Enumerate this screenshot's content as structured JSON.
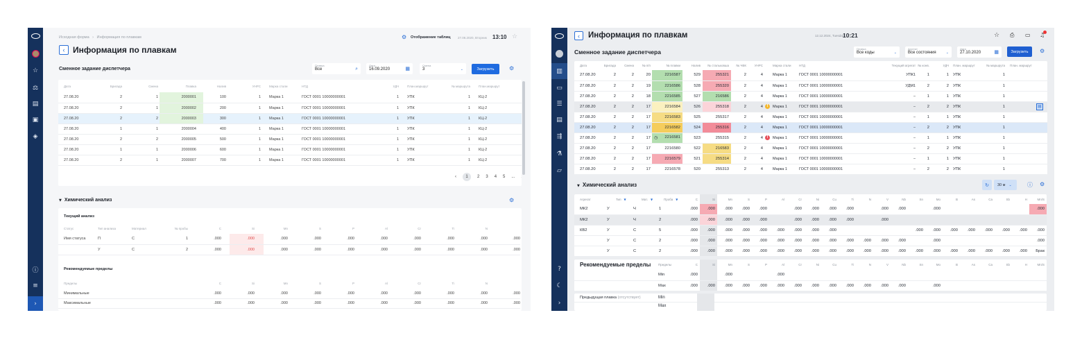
{
  "cell_colors": {
    "green": "#b3deaf",
    "lightgreen": "#e2f4dd",
    "yellow": "#f6dc84",
    "lightyellow": "#fbf1c0",
    "amber": "#f5cd5c",
    "pink": "#f6aab3",
    "lightpink": "#fbd4d9",
    "red": "#f28c99",
    "softred": "#fdeaea",
    "selected": "#dbe8f8",
    "lightselected": "#e6f2fc",
    "hover": "#e8eaed",
    "grey": "#e5e7ea"
  },
  "left": {
    "breadcrumb": [
      "Исходная форма",
      "›",
      "Информация по плавкам"
    ],
    "display_tables": "Отображение таблиц",
    "date": "27.08.2020, Вторник",
    "time": "13:10",
    "title": "Информация по плавкам",
    "section_title": "Сменное задание диспетчера",
    "filters": [
      {
        "label": "Плавка",
        "value": "Все"
      },
      {
        "label": "Дата",
        "value": "16.09.2020"
      },
      {
        "label": "Смена",
        "value": "3"
      }
    ],
    "load": "Загрузить",
    "table": {
      "headers": [
        "Дата",
        "Бригада",
        "Смена",
        "Плавка",
        "Налив",
        "УНРС",
        "Марка стали",
        "НТД",
        "УДЧ",
        "План.маршрут",
        "№ маршрута",
        "План.маршрут"
      ],
      "rows": [
        {
          "cells": [
            "27.08.20",
            "2",
            "1",
            "2000001",
            "100",
            "1",
            "Марка 1",
            "ГОСТ 0001 10000000001",
            "1",
            "УПК",
            "1",
            "КЦ-2"
          ],
          "hl": {
            "3": "lightgreen"
          }
        },
        {
          "cells": [
            "27.08.20",
            "2",
            "1",
            "2000002",
            "200",
            "1",
            "Марка 1",
            "ГОСТ 0001 10000000001",
            "1",
            "УПК",
            "1",
            "КЦ-2"
          ],
          "hl": {
            "3": "lightgreen"
          }
        },
        {
          "cells": [
            "27.08.20",
            "2",
            "2",
            "2000003",
            "300",
            "1",
            "Марка 1",
            "ГОСТ 0001 10000000001",
            "1",
            "УПК",
            "1",
            "КЦ-2"
          ],
          "hl": {
            "3": "lightgreen"
          },
          "state": "lightselected"
        },
        {
          "cells": [
            "27.08.20",
            "1",
            "1",
            "2000004",
            "400",
            "1",
            "Марка 1",
            "ГОСТ 0001 10000000001",
            "1",
            "УПК",
            "1",
            "КЦ-2"
          ]
        },
        {
          "cells": [
            "27.08.20",
            "2",
            "2",
            "2000005",
            "500",
            "1",
            "Марка 1",
            "ГОСТ 0001 10000000001",
            "1",
            "УПК",
            "1",
            "КЦ-2"
          ]
        },
        {
          "cells": [
            "27.08.20",
            "1",
            "1",
            "2000006",
            "600",
            "1",
            "Марка 1",
            "ГОСТ 0001 10000000001",
            "1",
            "УПК",
            "1",
            "КЦ-2"
          ]
        },
        {
          "cells": [
            "27.08.20",
            "2",
            "1",
            "2000007",
            "700",
            "1",
            "Марка 1",
            "ГОСТ 0001 10000000001",
            "1",
            "УПК",
            "1",
            "КЦ-2"
          ]
        }
      ]
    },
    "pagination": {
      "prev": "‹",
      "pages": [
        "1",
        "2",
        "3",
        "4",
        "5",
        "...",
        "10"
      ],
      "next": "›",
      "current": "1"
    },
    "chem": {
      "title": "Химический анализ",
      "current_title": "Текущий анализ",
      "current": {
        "headers": [
          "Статус",
          "Тип анализа",
          "Материал",
          "№ пробы",
          "C",
          "Si",
          "Mn",
          "S",
          "P",
          "Al",
          "Cr",
          "Ti",
          "N",
          ""
        ],
        "rows": [
          {
            "cells": [
              "Имя статуса",
              "П",
              "С",
              "1",
              ".000",
              ".000",
              ".000",
              ".000",
              ".000",
              ".000",
              ".000",
              ".000",
              ".000",
              ".000"
            ],
            "hl": {
              "5": "softred"
            },
            "red": [
              5
            ]
          },
          {
            "cells": [
              "",
              "У",
              "С",
              "2",
              ".000",
              ".000",
              ".000",
              ".000",
              ".000",
              ".000",
              ".000",
              ".000",
              ".000",
              ".000"
            ],
            "hl": {
              "5": "softred"
            },
            "red": [
              5
            ]
          }
        ]
      },
      "rec_title": "Рекомендуемые пределы",
      "rec": {
        "headers": [
          "Пределы",
          "",
          "",
          "",
          "C",
          "Si",
          "Mn",
          "S",
          "P",
          "Al",
          "Cr",
          "Ti",
          "N",
          ""
        ],
        "rows": [
          {
            "cells": [
              "Минимальные",
              "",
              "",
              "",
              ".000",
              ".000",
              ".000",
              ".000",
              ".000",
              ".000",
              ".000",
              ".000",
              ".000",
              ".000"
            ]
          },
          {
            "cells": [
              "Максимальные",
              "",
              "",
              "",
              ".000",
              ".000",
              ".000",
              ".000",
              ".000",
              ".000",
              ".000",
              ".000",
              ".000",
              ".000"
            ]
          }
        ]
      }
    }
  },
  "right": {
    "title": "Информация по плавкам",
    "date": "12.12.2024, Tuesday",
    "time": "10:21",
    "section_title": "Сменное задание диспетчера",
    "filters": [
      {
        "label": "Плавка",
        "value": "Все коды"
      },
      {
        "label": "Агрегат",
        "value": "Все состояния"
      },
      {
        "label": "Дата",
        "value": "27.10.2020"
      }
    ],
    "load": "Загрузить",
    "table": {
      "headers": [
        "Дата",
        "Бригада",
        "Смена",
        "№ п/п",
        "№ плавки",
        "Налив",
        "№ стальковша",
        "№ ЧВК",
        "УНРС",
        "",
        "Марка стали",
        "НТД",
        "Текущий агрегат",
        "№ конв.",
        "УДЧ",
        "План. маршрут",
        "№ маршрута",
        "План. маршрут"
      ],
      "rows": [
        {
          "cells": [
            "27.08.20",
            "2",
            "2",
            "20",
            "2216587",
            "529",
            "255321",
            "2",
            "4",
            "",
            "Марка 1",
            "ГОСТ 0001 10000000001",
            "УПК1",
            "1",
            "1",
            "УПК",
            "1",
            ""
          ],
          "hl": {
            "4": "green",
            "6": "pink"
          }
        },
        {
          "cells": [
            "27.08.20",
            "2",
            "2",
            "19",
            "2216586",
            "528",
            "255320",
            "2",
            "4",
            "",
            "Марка 1",
            "ГОСТ 0001 10000000001",
            "УДМ1",
            "2",
            "2",
            "УПК",
            "1",
            ""
          ],
          "hl": {
            "4": "green",
            "6": "pink"
          }
        },
        {
          "cells": [
            "27.08.20",
            "2",
            "2",
            "18",
            "2216585",
            "527",
            "216586",
            "2",
            "4",
            "",
            "Марка 1",
            "ГОСТ 0001 10000000001",
            "–",
            "1",
            "1",
            "УПК",
            "1",
            ""
          ],
          "hl": {
            "4": "green",
            "6": "green"
          }
        },
        {
          "cells": [
            "27.08.20",
            "2",
            "2",
            "17",
            "2216584",
            "526",
            "255318",
            "2",
            "4",
            "",
            "Марка 1",
            "ГОСТ 0001 10000000001",
            "–",
            "2",
            "2",
            "УПК",
            "1",
            ""
          ],
          "hl": {
            "4": "lightyellow",
            "6": "lightpink"
          },
          "state": "hover",
          "badge": "warning",
          "action": "document"
        },
        {
          "cells": [
            "27.08.20",
            "2",
            "2",
            "17",
            "2216583",
            "525",
            "255317",
            "2",
            "4",
            "",
            "Марка 1",
            "ГОСТ 0001 10000000001",
            "–",
            "1",
            "1",
            "УПК",
            "1",
            ""
          ],
          "hl": {
            "4": "yellow"
          }
        },
        {
          "cells": [
            "27.08.20",
            "2",
            "2",
            "17",
            "2216582",
            "524",
            "255316",
            "2",
            "4",
            "",
            "Марка 1",
            "ГОСТ 0001 10000000001",
            "–",
            "2",
            "2",
            "УПК",
            "1",
            ""
          ],
          "hl": {
            "4": "amber",
            "6": "red"
          },
          "state": "selected"
        },
        {
          "cells": [
            "27.08.20",
            "2",
            "2",
            "17",
            "2216581",
            "523",
            "255315",
            "2",
            "4",
            "",
            "Марка 1",
            "ГОСТ 0001 10000000001",
            "–",
            "1",
            "1",
            "УПК",
            "1",
            ""
          ],
          "hl": {
            "4": "green"
          },
          "badge": "error",
          "plavka_icon": "clock"
        },
        {
          "cells": [
            "27.08.20",
            "2",
            "2",
            "17",
            "2216580",
            "522",
            "216583",
            "2",
            "4",
            "",
            "Марка 1",
            "ГОСТ 0001 10000000001",
            "–",
            "2",
            "2",
            "УПК",
            "1",
            ""
          ],
          "hl": {
            "6": "yellow"
          }
        },
        {
          "cells": [
            "27.08.20",
            "2",
            "2",
            "17",
            "2216579",
            "521",
            "255314",
            "2",
            "4",
            "",
            "Марка 1",
            "ГОСТ 0001 10000000001",
            "–",
            "1",
            "1",
            "УПК",
            "1",
            ""
          ],
          "hl": {
            "4": "pink",
            "6": "yellow"
          }
        },
        {
          "cells": [
            "27.08.20",
            "2",
            "2",
            "17",
            "2216578",
            "520",
            "255313",
            "2",
            "4",
            "",
            "Марка 1",
            "ГОСТ 0001 10000000001",
            "–",
            "2",
            "2",
            "УПК",
            "1",
            ""
          ]
        }
      ]
    },
    "chem": {
      "title": "Химический анализ",
      "interval": "30 м",
      "table": {
        "headers": [
          "Агрегат",
          "Тип",
          "Мат.",
          "Проба",
          "C",
          "Si",
          "Mn",
          "S",
          "P",
          "Al",
          "Cr",
          "Ni",
          "Cu",
          "Ti",
          "N",
          "V",
          "Nb",
          "Sn",
          "Mo",
          "B",
          "As",
          "Ca",
          "Sb",
          "H",
          "Mn/S"
        ],
        "rows": [
          {
            "cells": [
              "МК2",
              "У",
              "Ч",
              "1",
              ".000",
              ".000",
              ".000",
              ".000",
              ".000",
              "",
              ".000",
              ".000",
              ".000",
              ".000",
              "",
              ".000",
              ".000",
              "",
              ".000",
              "",
              "",
              "",
              "",
              "",
              ".000"
            ],
            "hl": {
              "5": "pink",
              "24": "pink"
            }
          },
          {
            "cells": [
              "МК2",
              "У",
              "Ч",
              "2",
              ".000",
              ".000",
              ".000",
              ".000",
              ".000",
              "",
              ".000",
              ".000",
              ".000",
              ".000",
              "",
              ".000",
              "",
              "",
              "",
              "",
              "",
              "",
              "",
              "",
              ""
            ],
            "hl": {
              "5": "lightpink"
            },
            "state": "hover"
          },
          {
            "cells": [
              "КВ2",
              "У",
              "С",
              "5",
              ".000",
              ".000",
              ".000",
              ".000",
              ".000",
              ".000",
              ".000",
              ".000",
              ".000",
              "",
              "",
              "",
              "",
              ".000",
              ".000",
              ".000",
              ".000",
              ".000",
              ".000",
              ".000",
              ".000"
            ]
          },
          {
            "cells": [
              "",
              "У",
              "С",
              "2",
              ".000",
              ".000",
              ".000",
              ".000",
              ".000",
              ".000",
              ".000",
              ".000",
              ".000",
              ".000",
              ".000",
              ".000",
              ".000",
              "",
              ".000",
              "",
              "",
              "",
              "",
              "",
              ".000"
            ]
          },
          {
            "cells": [
              "",
              "У",
              "С",
              "2",
              ".000",
              ".000",
              ".000",
              ".000",
              ".000",
              ".000",
              ".000",
              ".000",
              ".000",
              ".000",
              ".000",
              ".000",
              ".000",
              ".000",
              ".000",
              ".000",
              ".000",
              ".000",
              ".000",
              ".000",
              "Брак"
            ]
          }
        ]
      },
      "rec": {
        "headers": [
          "Рекомендуемые пределы",
          "Пределы",
          "C",
          "Si",
          "Mn",
          "S",
          "P",
          "Al",
          "Cr",
          "Ni",
          "Cu",
          "Ti",
          "N",
          "V",
          "Nb",
          "Sn",
          "Mo",
          "B",
          "As",
          "Ca",
          "Sb",
          "H",
          "Mn/S"
        ],
        "rows": [
          {
            "cells": [
              "",
              "Min",
              ".000",
              "",
              ".000",
              "",
              "",
              ".000",
              "",
              "",
              "",
              "",
              "",
              "",
              "",
              "",
              "",
              "",
              "",
              "",
              "",
              "",
              ""
            ]
          },
          {
            "cells": [
              "",
              "Max",
              ".000",
              ".000",
              ".000",
              ".000",
              ".000",
              ".000",
              ".000",
              ".000",
              ".000",
              ".000",
              ".000",
              ".000",
              ".000",
              "",
              ".000",
              "",
              "",
              "",
              "",
              "",
              ""
            ]
          }
        ]
      },
      "prev": {
        "label": "Предыдущая плавка",
        "note": "(отсутствует)",
        "rows": [
          "Min",
          "Max"
        ]
      }
    }
  }
}
